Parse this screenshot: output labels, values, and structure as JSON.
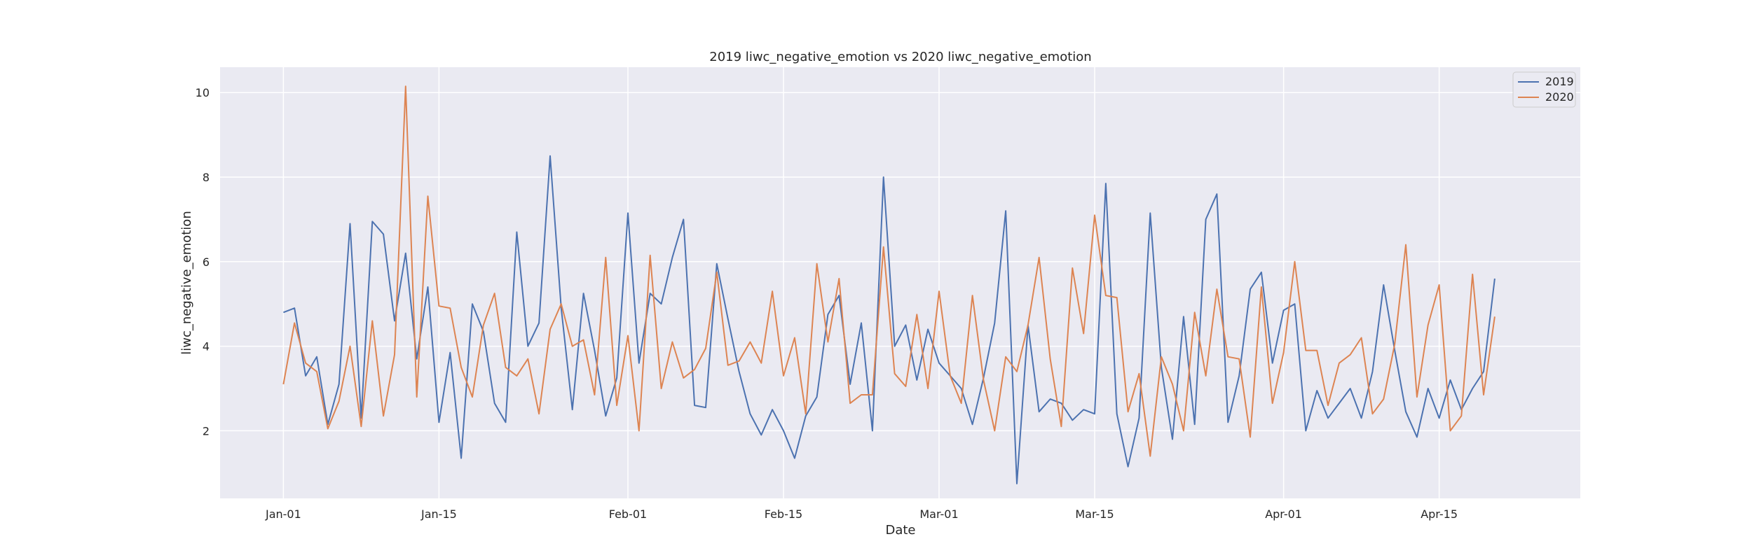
{
  "chart_data": {
    "type": "line",
    "title": "2019 liwc_negative_emotion vs 2020 liwc_negative_emotion",
    "xlabel": "Date",
    "ylabel": "liwc_negative_emotion",
    "x_start": "Jan-01",
    "x_end": "Apr-21",
    "xlim": [
      "Dec-26",
      "Apr-26"
    ],
    "ylim": [
      0.4,
      10.6
    ],
    "xticks": [
      {
        "label": "Jan-01",
        "day": 0
      },
      {
        "label": "Jan-15",
        "day": 14
      },
      {
        "label": "Feb-01",
        "day": 31
      },
      {
        "label": "Feb-15",
        "day": 45
      },
      {
        "label": "Mar-01",
        "day": 59
      },
      {
        "label": "Mar-15",
        "day": 73
      },
      {
        "label": "Apr-01",
        "day": 90
      },
      {
        "label": "Apr-15",
        "day": 104
      }
    ],
    "yticks": [
      2,
      4,
      6,
      8,
      10
    ],
    "grid": true,
    "legend_position": "top-right",
    "series": [
      {
        "name": "2019",
        "color": "#4c72b0",
        "values": [
          4.8,
          4.9,
          3.3,
          3.75,
          2.15,
          3.1,
          6.9,
          2.3,
          6.95,
          6.65,
          4.6,
          6.2,
          3.7,
          5.4,
          2.2,
          3.85,
          1.35,
          5.0,
          4.35,
          2.65,
          2.2,
          6.7,
          4.0,
          4.55,
          8.5,
          4.9,
          2.5,
          5.25,
          3.9,
          2.35,
          3.25,
          7.15,
          3.6,
          5.25,
          5.0,
          6.1,
          7.0,
          2.6,
          2.55,
          5.95,
          4.65,
          3.4,
          2.4,
          1.9,
          2.5,
          2.0,
          1.35,
          2.35,
          2.8,
          4.75,
          5.2,
          3.1,
          4.55,
          2.0,
          8.0,
          4.0,
          4.5,
          3.2,
          4.4,
          3.6,
          3.3,
          3.0,
          2.15,
          3.25,
          4.55,
          7.2,
          0.75,
          4.5,
          2.45,
          2.75,
          2.65,
          2.25,
          2.5,
          2.4,
          7.85,
          2.4,
          1.15,
          2.3,
          7.15,
          3.5,
          1.8,
          4.7,
          2.15,
          7.0,
          7.6,
          2.2,
          3.3,
          5.35,
          5.75,
          3.6,
          4.85,
          5.0,
          2.0,
          2.95,
          2.3,
          2.65,
          3.0,
          2.3,
          3.4,
          5.45,
          3.9,
          2.45,
          1.85,
          3.0,
          2.3,
          3.2,
          2.5,
          3.0,
          3.4,
          5.6
        ]
      },
      {
        "name": "2020",
        "color": "#dd8452",
        "values": [
          3.1,
          4.55,
          3.6,
          3.4,
          2.05,
          2.7,
          4.0,
          2.1,
          4.6,
          2.35,
          3.8,
          10.15,
          2.8,
          7.55,
          4.95,
          4.9,
          3.5,
          2.8,
          4.5,
          5.25,
          3.5,
          3.3,
          3.7,
          2.4,
          4.4,
          5.0,
          4.0,
          4.15,
          2.85,
          6.1,
          2.6,
          4.25,
          2.0,
          6.15,
          3.0,
          4.1,
          3.25,
          3.45,
          3.95,
          5.75,
          3.55,
          3.65,
          4.1,
          3.6,
          5.3,
          3.3,
          4.2,
          2.4,
          5.95,
          4.1,
          5.6,
          2.65,
          2.85,
          2.85,
          6.35,
          3.35,
          3.05,
          4.75,
          3.0,
          5.3,
          3.3,
          2.65,
          5.2,
          3.2,
          2.0,
          3.75,
          3.4,
          4.5,
          6.1,
          3.7,
          2.1,
          5.85,
          4.3,
          7.1,
          5.2,
          5.15,
          2.45,
          3.35,
          1.4,
          3.75,
          3.1,
          2.0,
          4.8,
          3.3,
          5.35,
          3.75,
          3.7,
          1.85,
          5.4,
          2.65,
          3.85,
          6.0,
          3.9,
          3.9,
          2.6,
          3.6,
          3.8,
          4.2,
          2.4,
          2.75,
          4.05,
          6.4,
          2.8,
          4.5,
          5.45,
          2.0,
          2.35,
          5.7,
          2.85,
          4.7
        ]
      }
    ]
  }
}
